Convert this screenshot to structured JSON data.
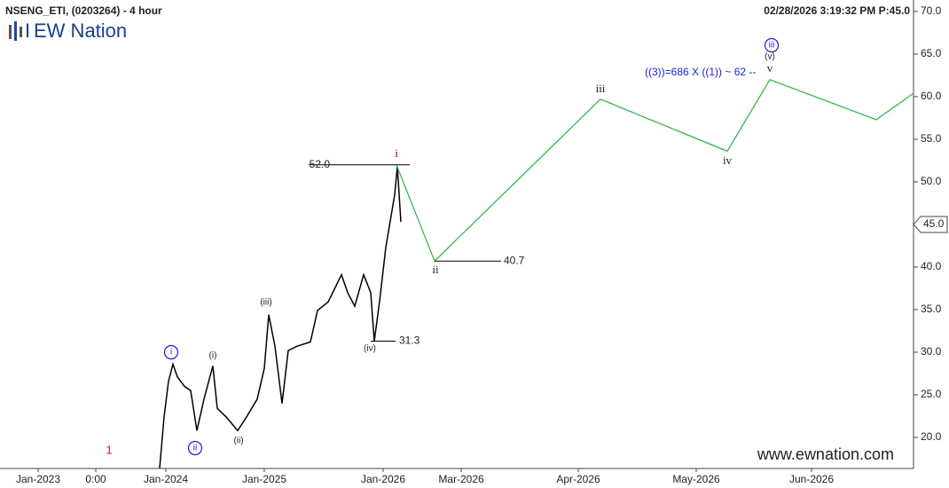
{
  "chart_data": {
    "type": "line",
    "title": "NSENG_ETI, (0203264) - 4 hour",
    "timestamp": "02/28/2026 3:19:32 PM  P:45.0",
    "logo": "EW Nation",
    "logo_mark": "I",
    "website": "www.ewnation.com",
    "xlim": [
      0,
      1030
    ],
    "xticks": [
      {
        "value": 43,
        "label": "Jan-2023"
      },
      {
        "value": 108,
        "label": "0:00"
      },
      {
        "value": 187,
        "label": "Jan-2024"
      },
      {
        "value": 298,
        "label": "Jan-2025"
      },
      {
        "value": 432,
        "label": "Jan-2026"
      },
      {
        "value": 520,
        "label": "Mar-2026"
      },
      {
        "value": 652,
        "label": "Apr-2026"
      },
      {
        "value": 785,
        "label": "May-2026"
      },
      {
        "value": 915,
        "label": "Jun-2026"
      }
    ],
    "ylim": [
      16.35,
      71.35
    ],
    "yticks": [
      {
        "value": 20,
        "label": "20.0"
      },
      {
        "value": 25,
        "label": "25.0"
      },
      {
        "value": 30,
        "label": "30.0"
      },
      {
        "value": 35,
        "label": "35.0"
      },
      {
        "value": 40,
        "label": "40.0"
      },
      {
        "value": 45,
        "label": "45.0"
      },
      {
        "value": 50,
        "label": "50.0"
      },
      {
        "value": 55,
        "label": "55.0"
      },
      {
        "value": 60,
        "label": "60.0"
      },
      {
        "value": 65,
        "label": "65.0"
      },
      {
        "value": 70,
        "label": "70.0"
      }
    ],
    "current_price": {
      "value": 45,
      "label": "45.0"
    },
    "price": {
      "color": "#000000",
      "x": [
        180,
        185,
        190,
        195,
        200,
        208,
        215,
        222,
        230,
        240,
        245,
        255,
        268,
        278,
        290,
        298,
        303,
        310,
        318,
        325,
        335,
        350,
        358,
        370,
        385,
        392,
        400,
        410,
        418,
        422,
        428,
        435,
        440,
        445,
        448,
        452
      ],
      "values": [
        16.4,
        22.4,
        26.6,
        28.6,
        27.1,
        26.0,
        25.5,
        20.8,
        24.5,
        28.4,
        23.4,
        22.4,
        20.8,
        22.4,
        24.5,
        28.1,
        34.4,
        30.7,
        24.0,
        30.2,
        30.7,
        31.2,
        34.9,
        35.9,
        39.1,
        37.0,
        35.4,
        39.1,
        37.0,
        31.3,
        36.0,
        42.3,
        45.4,
        48.5,
        51.8,
        45.3
      ]
    },
    "projection": {
      "color": "#3cb44b",
      "x": [
        447,
        490,
        677,
        820,
        868,
        988,
        1030
      ],
      "values": [
        52.0,
        40.7,
        59.7,
        53.6,
        62.0,
        57.3,
        60.4
      ]
    },
    "levels": [
      {
        "value": 52,
        "label": "52.0"
      },
      {
        "value": 40.7,
        "label": "40.7"
      },
      {
        "value": 31.3,
        "label": "31.3"
      }
    ],
    "annotation": "((3))=686 X ((1)) ~ 62 --",
    "wave_labels": [
      "1",
      "i",
      "ii",
      "(i)",
      "(ii)",
      "(iii)",
      "(iv)",
      "i",
      "ii",
      "iii",
      "iv",
      "(v)",
      "v",
      "iii"
    ]
  }
}
